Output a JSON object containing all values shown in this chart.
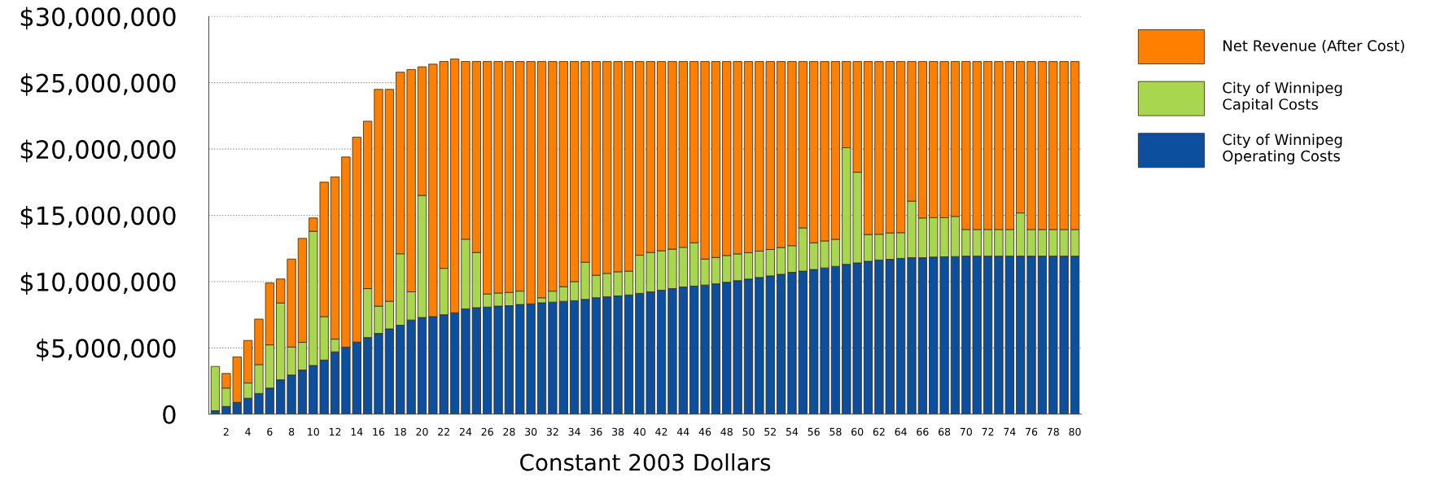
{
  "chart_data": {
    "type": "bar",
    "stacked": true,
    "xlabel": "Constant 2003 Dollars",
    "categories": [
      null,
      "2",
      null,
      "4",
      null,
      "6",
      null,
      "8",
      null,
      "10",
      null,
      "12",
      null,
      "14",
      null,
      "16",
      null,
      "18",
      null,
      "20",
      null,
      "22",
      null,
      "24",
      null,
      "26",
      null,
      "28",
      null,
      "30",
      null,
      "32",
      null,
      "34",
      null,
      "36",
      null,
      "38",
      null,
      "40",
      null,
      "42",
      null,
      "44",
      null,
      "46",
      null,
      "48",
      null,
      "50",
      null,
      "52",
      null,
      "54",
      null,
      "56",
      null,
      "58",
      null,
      "60",
      null,
      "62",
      null,
      "64",
      null,
      "66",
      null,
      "68",
      null,
      "70",
      null,
      "72",
      null,
      "74",
      null,
      "76",
      null,
      "78",
      null,
      "80"
    ],
    "series": [
      {
        "name": "City of Winnipeg\nOperating Costs",
        "color": "#0b4f9e",
        "values": [
          260000,
          580000,
          890000,
          1200000,
          1560000,
          1970000,
          2590000,
          2950000,
          3330000,
          3670000,
          4080000,
          4700000,
          5060000,
          5440000,
          5780000,
          6090000,
          6430000,
          6710000,
          7100000,
          7290000,
          7360000,
          7500000,
          7650000,
          7940000,
          8030000,
          8080000,
          8150000,
          8180000,
          8270000,
          8320000,
          8400000,
          8450000,
          8510000,
          8560000,
          8660000,
          8780000,
          8850000,
          8920000,
          8990000,
          9110000,
          9230000,
          9350000,
          9470000,
          9590000,
          9660000,
          9740000,
          9830000,
          9950000,
          10070000,
          10190000,
          10310000,
          10430000,
          10550000,
          10700000,
          10790000,
          10910000,
          11030000,
          11150000,
          11300000,
          11410000,
          11530000,
          11630000,
          11680000,
          11750000,
          11800000,
          11800000,
          11850000,
          11870000,
          11890000,
          11920000,
          11920000,
          11920000,
          11920000,
          11920000,
          11920000,
          11920000,
          11920000,
          11920000,
          11920000,
          11920000
        ]
      },
      {
        "name": "City of Winnipeg\nCapital Costs",
        "color": "#a8d64e",
        "values": [
          3340000,
          1390000,
          0,
          1150000,
          2180000,
          3260000,
          5800000,
          2110000,
          2090000,
          10130000,
          3280000,
          960000,
          0,
          0,
          3690000,
          2060000,
          2080000,
          5390000,
          2130000,
          9210000,
          0,
          3500000,
          0,
          5260000,
          4170000,
          980000,
          990000,
          1000000,
          1010000,
          0,
          380000,
          830000,
          1110000,
          1440000,
          2800000,
          1700000,
          1770000,
          1820000,
          1800000,
          2880000,
          2970000,
          2980000,
          2980000,
          3000000,
          3270000,
          1960000,
          1990000,
          2020000,
          2020000,
          1990000,
          1990000,
          1990000,
          2020000,
          2010000,
          3260000,
          2020000,
          2040000,
          2040000,
          8800000,
          6840000,
          2020000,
          1940000,
          1990000,
          1940000,
          4270000,
          3000000,
          2970000,
          2950000,
          3030000,
          2010000,
          2010000,
          2010000,
          2010000,
          2010000,
          3260000,
          2010000,
          2010000,
          2010000,
          2010000,
          2010000
        ]
      },
      {
        "name": "Net Revenue (After Cost)",
        "color": "#ff8000",
        "values": [
          0,
          1100000,
          3430000,
          3210000,
          3430000,
          4670000,
          1810000,
          6640000,
          7840000,
          1000000,
          10140000,
          12240000,
          14340000,
          15460000,
          12630000,
          16350000,
          15990000,
          13700000,
          16770000,
          9700000,
          19040000,
          15600000,
          19150000,
          13400000,
          14400000,
          17540000,
          17460000,
          17420000,
          17320000,
          18280000,
          17820000,
          17320000,
          16980000,
          16600000,
          15140000,
          16120000,
          15980000,
          15860000,
          15810000,
          14610000,
          14400000,
          14270000,
          14150000,
          14010000,
          13670000,
          14900000,
          14780000,
          14630000,
          14510000,
          14420000,
          14300000,
          14180000,
          14030000,
          13890000,
          12550000,
          13670000,
          13530000,
          13410000,
          6500000,
          8350000,
          13050000,
          13030000,
          12930000,
          12910000,
          10530000,
          11800000,
          11780000,
          11780000,
          11680000,
          12670000,
          12670000,
          12670000,
          12670000,
          12670000,
          11420000,
          12670000,
          12670000,
          12670000,
          12670000,
          12670000
        ]
      }
    ],
    "ylim": [
      0,
      30000000
    ],
    "yticks": [
      {
        "value": 0,
        "label": "0"
      },
      {
        "value": 5000000,
        "label": "$5,000,000"
      },
      {
        "value": 10000000,
        "label": "$10,000,000"
      },
      {
        "value": 15000000,
        "label": "$15,000,000"
      },
      {
        "value": 20000000,
        "label": "$20,000,000"
      },
      {
        "value": 25000000,
        "label": "$25,000,000"
      },
      {
        "value": 30000000,
        "label": "$30,000,000"
      }
    ],
    "grid": "y",
    "legend": "top right"
  }
}
